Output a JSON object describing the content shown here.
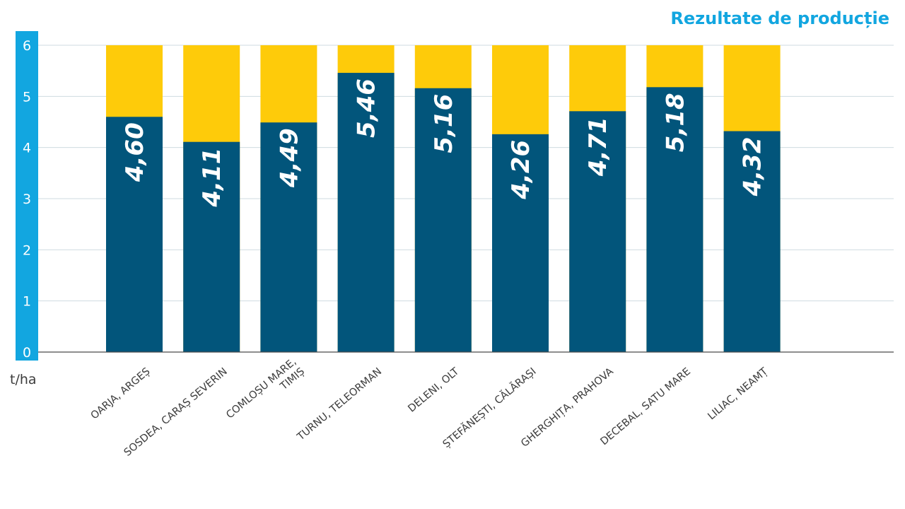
{
  "chart_data": {
    "type": "bar",
    "title": "Rezultate de producție",
    "ylabel": "t/ha",
    "xlabel": "",
    "ylim": [
      0,
      6
    ],
    "yticks": [
      0,
      1,
      2,
      3,
      4,
      5,
      6
    ],
    "grid": true,
    "categories": [
      [
        "OARJA, ARGEȘ"
      ],
      [
        "SOSDEA, CARAȘ SEVERIN"
      ],
      [
        "COMLOȘU MARE,",
        "TIMIȘ"
      ],
      [
        "TURNU, TELEORMAN"
      ],
      [
        "DELENI, OLT"
      ],
      [
        "ȘTEFĂNEȘTI, CĂLĂRAȘI"
      ],
      [
        "GHERGHIȚA, PRAHOVA"
      ],
      [
        "DECEBAL, SATU MARE"
      ],
      [
        "LILIAC, NEAMȚ"
      ]
    ],
    "values": [
      4.6,
      4.11,
      4.49,
      5.46,
      5.16,
      4.26,
      4.71,
      5.18,
      4.32
    ],
    "value_labels": [
      "4,60",
      "4,11",
      "4,49",
      "5,46",
      "5,16",
      "4,26",
      "4,71",
      "5,18",
      "4,32"
    ],
    "background_bar_value": 6,
    "colors": {
      "value_bar": "#02557b",
      "background_bar": "#fecb0a",
      "axis_band": "#12a6e0",
      "title": "#12a6e0"
    }
  }
}
